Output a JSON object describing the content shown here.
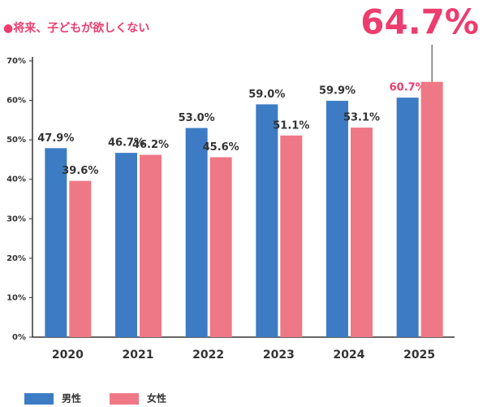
{
  "chart_data": {
    "type": "bar",
    "title": "●将来、子どもが欲しくない",
    "categories": [
      "2020",
      "2021",
      "2022",
      "2023",
      "2024",
      "2025"
    ],
    "series": [
      {
        "name": "男性",
        "color": "#3d7cc4",
        "values": [
          47.9,
          46.7,
          53.0,
          59.0,
          59.9,
          60.7
        ],
        "value_labels": [
          "47.9%",
          "46.7%",
          "53.0%",
          "59.0%",
          "59.9%",
          "60.7%"
        ]
      },
      {
        "name": "女性",
        "color": "#ef7886",
        "values": [
          39.6,
          46.2,
          45.6,
          51.1,
          53.1,
          64.7
        ],
        "value_labels": [
          "39.6%",
          "46.2%",
          "45.6%",
          "51.1%",
          "53.1%",
          "64.7%"
        ]
      }
    ],
    "ylim": [
      0,
      70
    ],
    "yticks": [
      {
        "value": 0,
        "label": "0%"
      },
      {
        "value": 10,
        "label": "10%"
      },
      {
        "value": 20,
        "label": "20%"
      },
      {
        "value": 30,
        "label": "30%"
      },
      {
        "value": 40,
        "label": "40%"
      },
      {
        "value": 50,
        "label": "50%"
      },
      {
        "value": 60,
        "label": "60%"
      },
      {
        "value": 70,
        "label": "70%"
      }
    ]
  }
}
